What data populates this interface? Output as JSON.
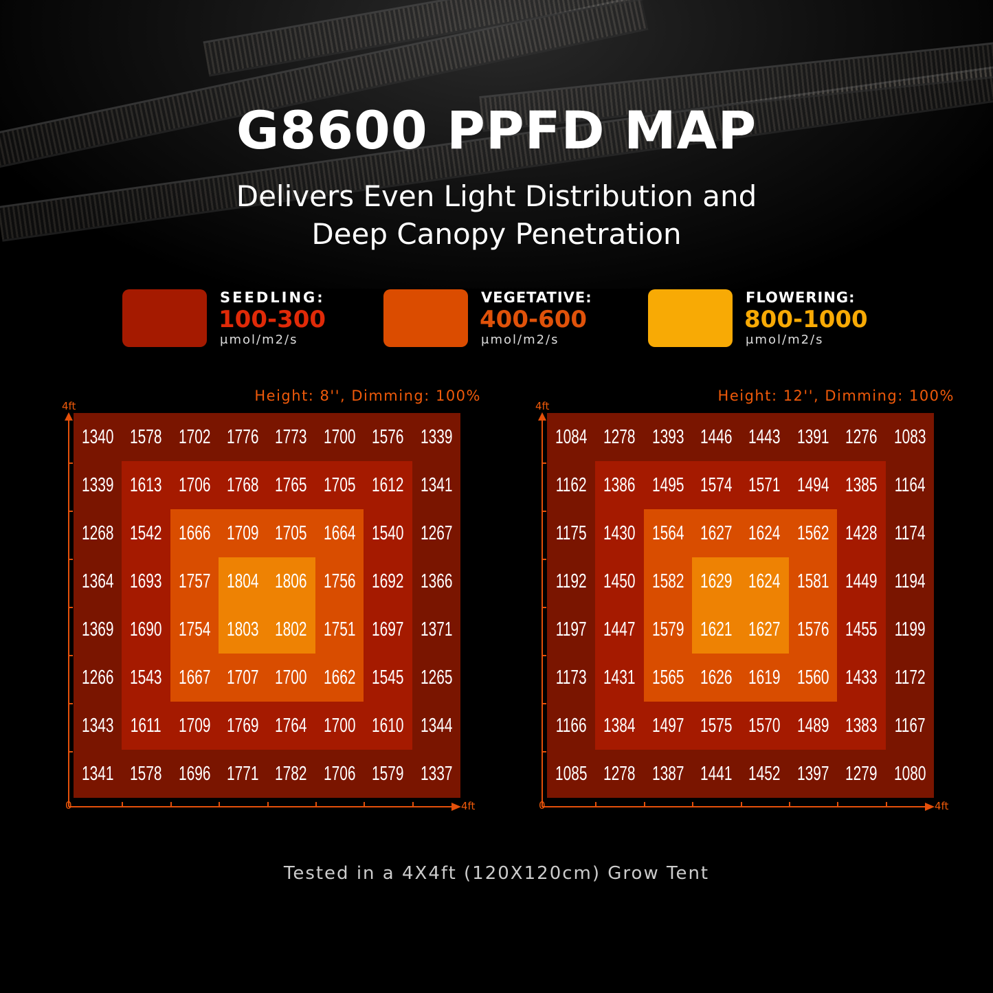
{
  "header": {
    "title": "G8600 PPFD MAP",
    "subtitle_line1": "Delivers Even Light Distribution and",
    "subtitle_line2": "Deep Canopy Penetration"
  },
  "legend": [
    {
      "name": "SEEDLING:",
      "range": "100-300",
      "unit": "μmol/m2/s",
      "swatch": "#a51a00",
      "text_color": "#e02a08"
    },
    {
      "name": "VEGETATIVE:",
      "range": "400-600",
      "unit": "μmol/m2/s",
      "swatch": "#db4c00",
      "text_color": "#e0520a"
    },
    {
      "name": "FLOWERING:",
      "range": "800-1000",
      "unit": "μmol/m2/s",
      "swatch": "#f8aa05",
      "text_color": "#f8aa05"
    }
  ],
  "ring_colors": [
    "#7a1500",
    "#a51a00",
    "#d94d00",
    "#ee8203"
  ],
  "axis_color": "#e5500a",
  "chart_data": [
    {
      "type": "heatmap",
      "title": "Height: 8'', Dimming: 100%",
      "x_axis": {
        "start_label": "0",
        "end_label": "4ft"
      },
      "y_axis": {
        "end_label": "4ft"
      },
      "values": [
        [
          1340,
          1578,
          1702,
          1776,
          1773,
          1700,
          1576,
          1339
        ],
        [
          1339,
          1613,
          1706,
          1768,
          1765,
          1705,
          1612,
          1341
        ],
        [
          1268,
          1542,
          1666,
          1709,
          1705,
          1664,
          1540,
          1267
        ],
        [
          1364,
          1693,
          1757,
          1804,
          1806,
          1756,
          1692,
          1366
        ],
        [
          1369,
          1690,
          1754,
          1803,
          1802,
          1751,
          1697,
          1371
        ],
        [
          1266,
          1543,
          1667,
          1707,
          1700,
          1662,
          1545,
          1265
        ],
        [
          1343,
          1611,
          1709,
          1769,
          1764,
          1700,
          1610,
          1344
        ],
        [
          1341,
          1578,
          1696,
          1771,
          1782,
          1706,
          1579,
          1337
        ]
      ]
    },
    {
      "type": "heatmap",
      "title": "Height: 12'', Dimming: 100%",
      "x_axis": {
        "start_label": "0",
        "end_label": "4ft"
      },
      "y_axis": {
        "end_label": "4ft"
      },
      "values": [
        [
          1084,
          1278,
          1393,
          1446,
          1443,
          1391,
          1276,
          1083
        ],
        [
          1162,
          1386,
          1495,
          1574,
          1571,
          1494,
          1385,
          1164
        ],
        [
          1175,
          1430,
          1564,
          1627,
          1624,
          1562,
          1428,
          1174
        ],
        [
          1192,
          1450,
          1582,
          1629,
          1624,
          1581,
          1449,
          1194
        ],
        [
          1197,
          1447,
          1579,
          1621,
          1627,
          1576,
          1455,
          1199
        ],
        [
          1173,
          1431,
          1565,
          1626,
          1619,
          1560,
          1433,
          1172
        ],
        [
          1166,
          1384,
          1497,
          1575,
          1570,
          1489,
          1383,
          1167
        ],
        [
          1085,
          1278,
          1387,
          1441,
          1452,
          1397,
          1279,
          1080
        ]
      ]
    }
  ],
  "footer": "Tested in a 4X4ft (120X120cm) Grow Tent"
}
